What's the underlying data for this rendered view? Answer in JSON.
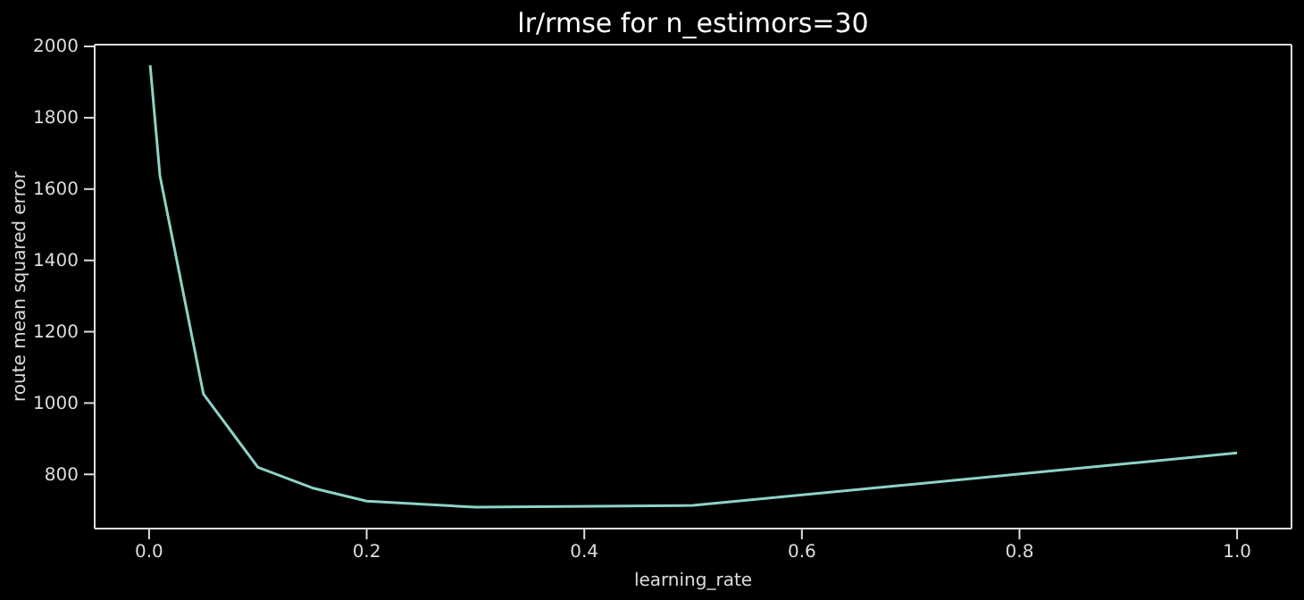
{
  "chart_data": {
    "type": "line",
    "title": "lr/rmse for n_estimors=30",
    "xlabel": "learning_rate",
    "ylabel": "route mean squared error",
    "x": [
      0.001,
      0.01,
      0.05,
      0.1,
      0.15,
      0.2,
      0.3,
      0.5,
      1.0
    ],
    "series": [
      {
        "color": "#8dd3c7",
        "values": [
          1947,
          1637,
          1025,
          820,
          762,
          725,
          708,
          713,
          860
        ]
      }
    ],
    "xlim": [
      -0.05,
      1.05
    ],
    "xticks": [
      {
        "value": 0,
        "label": "0.0"
      },
      0.2,
      0.4,
      0.6,
      0.8,
      {
        "value": 1,
        "label": "1.0"
      }
    ],
    "ylim": [
      648,
      2005
    ],
    "yticks": [
      800,
      1000,
      1200,
      1400,
      1600,
      1800,
      2000
    ],
    "marker": "none",
    "line_style": "solid"
  }
}
